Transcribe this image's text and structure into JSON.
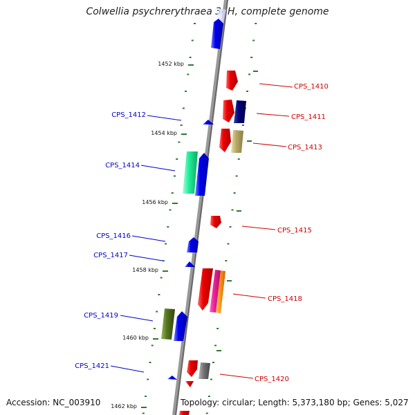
{
  "title": "Colwellia psychrerythraea 34H, complete genome",
  "footer": {
    "accession": "Accession: NC_003910",
    "topology": "Topology: circular; Length: 5,373,180 bp; Genes: 5,027"
  },
  "kbp_labels": [
    "1452 kbp",
    "1454 kbp",
    "1456 kbp",
    "1458 kbp",
    "1460 kbp",
    "1462 kbp"
  ],
  "genes_left": [
    {
      "label": "CPS_1412",
      "color": "#0000cc"
    },
    {
      "label": "CPS_1414",
      "color": "#0000cc"
    },
    {
      "label": "CPS_1416",
      "color": "#0000cc"
    },
    {
      "label": "CPS_1417",
      "color": "#0000cc"
    },
    {
      "label": "CPS_1419",
      "color": "#0000cc"
    },
    {
      "label": "CPS_1421",
      "color": "#0000cc"
    }
  ],
  "genes_right": [
    {
      "label": "CPS_1410",
      "color": "#cc0000"
    },
    {
      "label": "CPS_1411",
      "color": "#cc0000"
    },
    {
      "label": "CPS_1413",
      "color": "#cc0000"
    },
    {
      "label": "CPS_1415",
      "color": "#cc0000"
    },
    {
      "label": "CPS_1418",
      "color": "#cc0000"
    },
    {
      "label": "CPS_1420",
      "color": "#cc0000"
    }
  ]
}
